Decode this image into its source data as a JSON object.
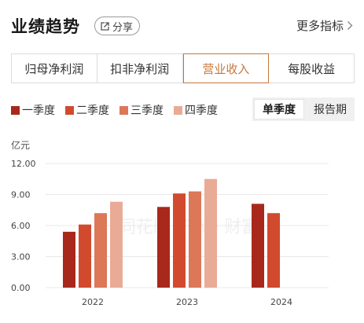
{
  "header": {
    "title": "业绩趋势",
    "share_label": "分享",
    "more_label": "更多指标"
  },
  "tabs": [
    {
      "label": "归母净利润",
      "active": false
    },
    {
      "label": "扣非净利润",
      "active": false
    },
    {
      "label": "营业收入",
      "active": true
    },
    {
      "label": "每股收益",
      "active": false
    }
  ],
  "period": {
    "options": [
      "单季度",
      "报告期"
    ],
    "selected": "单季度"
  },
  "watermark": "同花顺 iFinD 财富",
  "chart_data": {
    "type": "bar",
    "unit": "亿元",
    "categories": [
      "2022",
      "2023",
      "2024"
    ],
    "series": [
      {
        "name": "一季度",
        "color": "#a8281c",
        "values": [
          5.4,
          7.8,
          8.1
        ]
      },
      {
        "name": "二季度",
        "color": "#d24a2e",
        "values": [
          6.1,
          9.1,
          7.2
        ]
      },
      {
        "name": "三季度",
        "color": "#dc7758",
        "values": [
          7.2,
          9.3,
          null
        ]
      },
      {
        "name": "四季度",
        "color": "#e9ab96",
        "values": [
          8.3,
          10.5,
          null
        ]
      }
    ],
    "yticks": [
      "12.00",
      "9.00",
      "6.00",
      "3.00",
      "0.00"
    ],
    "ylim": [
      0,
      12
    ],
    "grid": true,
    "legend_position": "top-left"
  }
}
